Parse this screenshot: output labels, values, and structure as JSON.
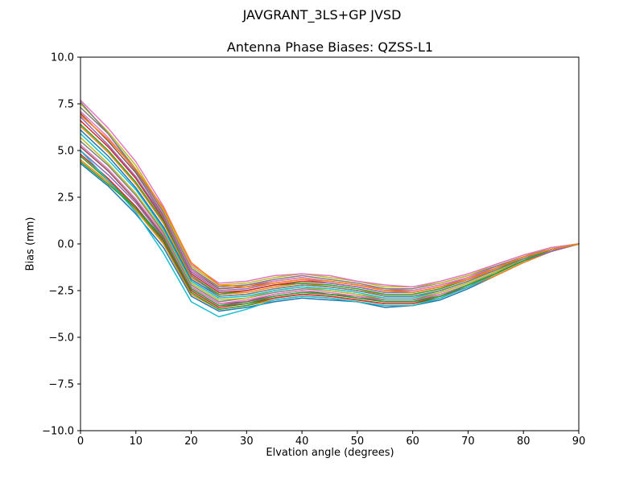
{
  "figure": {
    "suptitle": "JAVGRANT_3LS+GP JVSD"
  },
  "chart_data": {
    "type": "line",
    "title": "Antenna Phase Biases: QZSS-L1",
    "xlabel": "Elvation angle (degrees)",
    "ylabel": "Bias (mm)",
    "xlim": [
      0,
      90
    ],
    "ylim": [
      -10,
      10
    ],
    "xticks": [
      0,
      10,
      20,
      30,
      40,
      50,
      60,
      70,
      80,
      90
    ],
    "yticks": [
      -10,
      -7.5,
      -5,
      -2.5,
      0,
      2.5,
      5,
      7.5,
      10
    ],
    "grid": false,
    "legend": "none",
    "x": [
      0,
      5,
      10,
      15,
      20,
      25,
      30,
      35,
      40,
      45,
      50,
      55,
      60,
      65,
      70,
      75,
      80,
      85,
      90
    ],
    "series": [
      {
        "color": "#1f77b4",
        "values": [
          4.3,
          3.1,
          1.6,
          -0.2,
          -2.8,
          -3.6,
          -3.4,
          -3.1,
          -2.9,
          -3.0,
          -3.1,
          -3.4,
          -3.3,
          -3.0,
          -2.4,
          -1.7,
          -1.0,
          -0.4,
          0.0
        ]
      },
      {
        "color": "#ff7f0e",
        "values": [
          4.5,
          3.3,
          1.8,
          0.0,
          -2.7,
          -3.5,
          -3.3,
          -3.0,
          -2.8,
          -2.9,
          -3.1,
          -3.3,
          -3.3,
          -2.9,
          -2.3,
          -1.7,
          -1.0,
          -0.4,
          0.0
        ]
      },
      {
        "color": "#2ca02c",
        "values": [
          4.7,
          3.4,
          1.9,
          0.1,
          -2.6,
          -3.5,
          -3.3,
          -2.9,
          -2.7,
          -2.8,
          -3.0,
          -3.2,
          -3.2,
          -2.9,
          -2.3,
          -1.6,
          -0.9,
          -0.4,
          0.0
        ]
      },
      {
        "color": "#d62728",
        "values": [
          4.8,
          3.5,
          2.0,
          0.2,
          -2.5,
          -3.4,
          -3.2,
          -2.9,
          -2.7,
          -2.8,
          -3.0,
          -3.2,
          -3.2,
          -2.8,
          -2.3,
          -1.6,
          -0.9,
          -0.4,
          0.0
        ]
      },
      {
        "color": "#9467bd",
        "values": [
          5.0,
          3.7,
          2.2,
          0.3,
          -2.4,
          -3.3,
          -3.1,
          -2.8,
          -2.6,
          -2.7,
          -2.9,
          -3.1,
          -3.1,
          -2.8,
          -2.2,
          -1.6,
          -0.9,
          -0.4,
          0.0
        ]
      },
      {
        "color": "#8c564b",
        "values": [
          5.2,
          3.9,
          2.3,
          0.4,
          -2.3,
          -3.2,
          -3.1,
          -2.7,
          -2.5,
          -2.7,
          -2.8,
          -3.1,
          -3.1,
          -2.7,
          -2.2,
          -1.5,
          -0.9,
          -0.3,
          0.0
        ]
      },
      {
        "color": "#e377c2",
        "values": [
          5.3,
          4.0,
          2.4,
          0.5,
          -2.3,
          -3.2,
          -3.0,
          -2.7,
          -2.5,
          -2.6,
          -2.8,
          -3.0,
          -3.0,
          -2.7,
          -2.2,
          -1.5,
          -0.9,
          -0.3,
          0.0
        ]
      },
      {
        "color": "#7f7f7f",
        "values": [
          5.5,
          4.2,
          2.6,
          0.6,
          -2.2,
          -3.1,
          -2.9,
          -2.6,
          -2.4,
          -2.5,
          -2.7,
          -3.0,
          -3.0,
          -2.6,
          -2.1,
          -1.5,
          -0.9,
          -0.3,
          0.0
        ]
      },
      {
        "color": "#bcbd22",
        "values": [
          5.7,
          4.3,
          2.7,
          0.7,
          -2.1,
          -3.0,
          -2.9,
          -2.5,
          -2.3,
          -2.5,
          -2.7,
          -2.9,
          -2.9,
          -2.6,
          -2.1,
          -1.5,
          -0.8,
          -0.3,
          0.0
        ]
      },
      {
        "color": "#17becf",
        "values": [
          5.9,
          4.5,
          2.9,
          0.8,
          -2.0,
          -2.9,
          -2.8,
          -2.5,
          -2.3,
          -2.4,
          -2.6,
          -2.9,
          -2.9,
          -2.5,
          -2.0,
          -1.4,
          -0.8,
          -0.3,
          0.0
        ]
      },
      {
        "color": "#1f77b4",
        "values": [
          6.1,
          4.7,
          3.0,
          0.9,
          -1.9,
          -2.8,
          -2.7,
          -2.4,
          -2.2,
          -2.3,
          -2.5,
          -2.8,
          -2.8,
          -2.5,
          -2.0,
          -1.4,
          -0.8,
          -0.3,
          0.0
        ]
      },
      {
        "color": "#ff7f0e",
        "values": [
          6.3,
          4.9,
          3.2,
          1.1,
          -1.8,
          -2.7,
          -2.6,
          -2.3,
          -2.1,
          -2.3,
          -2.5,
          -2.7,
          -2.7,
          -2.4,
          -1.9,
          -1.4,
          -0.8,
          -0.3,
          0.0
        ]
      },
      {
        "color": "#2ca02c",
        "values": [
          6.4,
          5.0,
          3.3,
          1.2,
          -1.7,
          -2.7,
          -2.5,
          -2.2,
          -2.1,
          -2.2,
          -2.4,
          -2.7,
          -2.7,
          -2.4,
          -1.9,
          -1.3,
          -0.8,
          -0.3,
          0.0
        ]
      },
      {
        "color": "#d62728",
        "values": [
          6.6,
          5.2,
          3.5,
          1.3,
          -1.6,
          -2.6,
          -2.5,
          -2.2,
          -2.0,
          -2.1,
          -2.3,
          -2.6,
          -2.6,
          -2.3,
          -1.9,
          -1.3,
          -0.7,
          -0.3,
          0.0
        ]
      },
      {
        "color": "#9467bd",
        "values": [
          6.8,
          5.3,
          3.6,
          1.4,
          -1.5,
          -2.5,
          -2.4,
          -2.1,
          -1.9,
          -2.1,
          -2.3,
          -2.6,
          -2.6,
          -2.3,
          -1.8,
          -1.3,
          -0.7,
          -0.3,
          0.0
        ]
      },
      {
        "color": "#8c564b",
        "values": [
          7.0,
          5.5,
          3.8,
          1.5,
          -1.4,
          -2.4,
          -2.3,
          -2.0,
          -1.8,
          -2.0,
          -2.2,
          -2.5,
          -2.5,
          -2.2,
          -1.8,
          -1.2,
          -0.7,
          -0.3,
          0.0
        ]
      },
      {
        "color": "#e377c2",
        "values": [
          7.1,
          5.7,
          3.9,
          1.6,
          -1.4,
          -2.3,
          -2.2,
          -2.0,
          -1.8,
          -2.0,
          -2.2,
          -2.4,
          -2.5,
          -2.2,
          -1.8,
          -1.2,
          -0.7,
          -0.2,
          0.0
        ]
      },
      {
        "color": "#7f7f7f",
        "values": [
          7.3,
          5.9,
          4.0,
          1.7,
          -1.3,
          -2.3,
          -2.2,
          -1.9,
          -1.7,
          -1.9,
          -2.1,
          -2.4,
          -2.4,
          -2.1,
          -1.7,
          -1.2,
          -0.7,
          -0.2,
          0.0
        ]
      },
      {
        "color": "#bcbd22",
        "values": [
          7.5,
          6.0,
          4.2,
          1.8,
          -1.2,
          -2.2,
          -2.1,
          -1.8,
          -1.6,
          -1.8,
          -2.0,
          -2.3,
          -2.3,
          -2.1,
          -1.7,
          -1.1,
          -0.6,
          -0.2,
          0.0
        ]
      },
      {
        "color": "#e377c2",
        "values": [
          7.7,
          6.2,
          4.4,
          2.0,
          -1.1,
          -2.1,
          -2.0,
          -1.7,
          -1.6,
          -1.7,
          -2.0,
          -2.2,
          -2.3,
          -2.0,
          -1.6,
          -1.1,
          -0.6,
          -0.2,
          0.0
        ]
      },
      {
        "color": "#17becf",
        "values": [
          5.0,
          3.4,
          1.7,
          -0.5,
          -3.1,
          -3.9,
          -3.5,
          -3.0,
          -2.8,
          -2.9,
          -3.1,
          -3.3,
          -3.3,
          -2.9,
          -2.3,
          -1.6,
          -0.9,
          -0.3,
          0.0
        ]
      },
      {
        "color": "#7f7f7f",
        "values": [
          7.6,
          5.9,
          3.9,
          1.4,
          -1.7,
          -2.8,
          -2.7,
          -2.4,
          -2.2,
          -2.3,
          -2.5,
          -2.8,
          -2.8,
          -2.5,
          -2.0,
          -1.4,
          -0.8,
          -0.3,
          0.0
        ]
      },
      {
        "color": "#2ca02c",
        "values": [
          4.4,
          3.2,
          1.9,
          0.3,
          -2.4,
          -3.3,
          -3.2,
          -2.8,
          -2.6,
          -2.7,
          -2.9,
          -3.1,
          -3.1,
          -2.8,
          -2.2,
          -1.6,
          -0.9,
          -0.3,
          0.0
        ]
      },
      {
        "color": "#ff7f0e",
        "values": [
          6.9,
          5.6,
          4.0,
          1.9,
          -1.0,
          -2.2,
          -2.3,
          -2.1,
          -1.9,
          -2.0,
          -2.2,
          -2.5,
          -2.6,
          -2.3,
          -1.9,
          -1.3,
          -0.7,
          -0.3,
          0.0
        ]
      }
    ]
  }
}
